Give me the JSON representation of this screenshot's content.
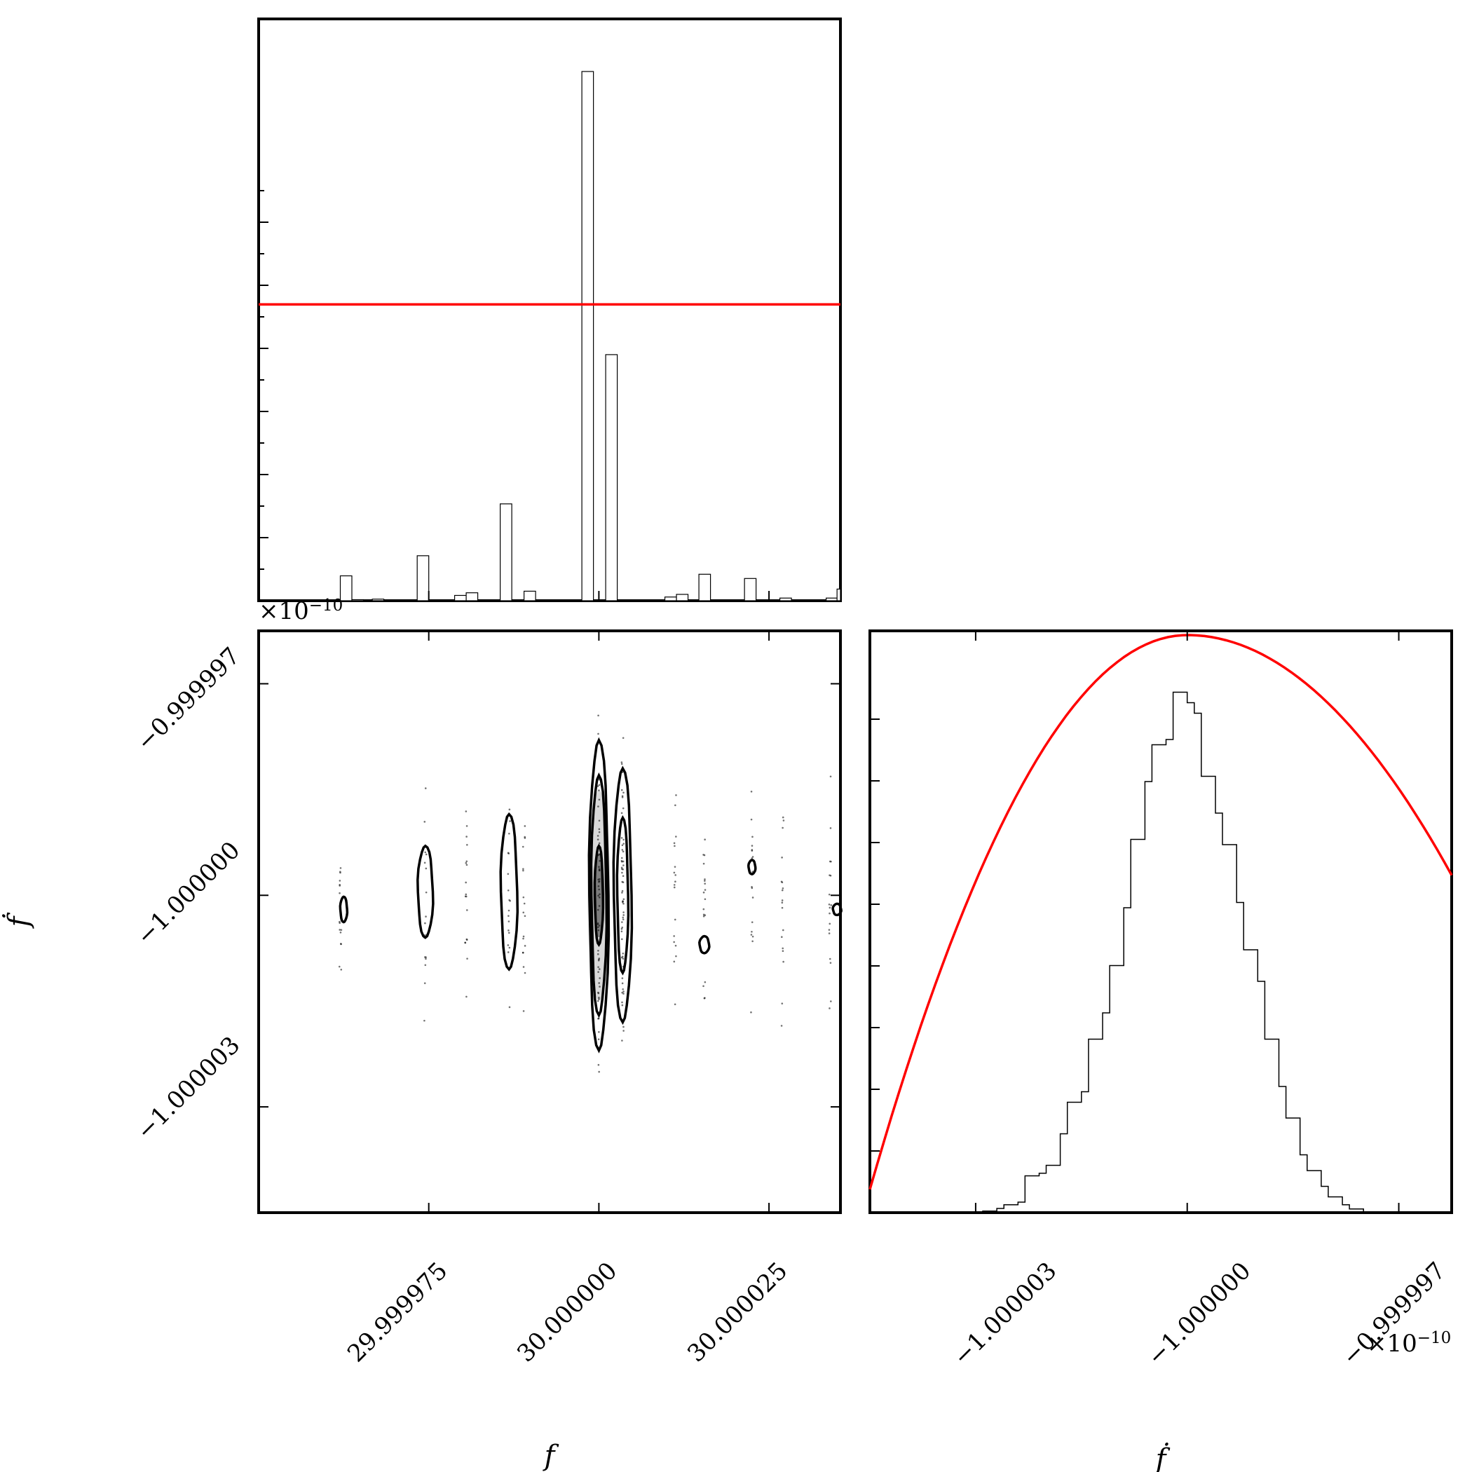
{
  "chart_data": [
    {
      "type": "bar",
      "panel": "histogram-f",
      "xlim": [
        29.99995,
        30.0000355
      ],
      "ylim": [
        0,
        1.0
      ],
      "bins": [
        {
          "x0": 29.999962,
          "x1": 29.9999637,
          "v": 0.047
        },
        {
          "x0": 29.9999637,
          "x1": 29.9999654,
          "v": 0.002
        },
        {
          "x0": 29.9999667,
          "x1": 29.9999684,
          "v": 0.003
        },
        {
          "x0": 29.9999733,
          "x1": 29.999975,
          "v": 0.085
        },
        {
          "x0": 29.9999788,
          "x1": 29.9999805,
          "v": 0.01
        },
        {
          "x0": 29.9999805,
          "x1": 29.9999822,
          "v": 0.015
        },
        {
          "x0": 29.9999855,
          "x1": 29.9999872,
          "v": 0.183
        },
        {
          "x0": 29.999989,
          "x1": 29.9999907,
          "v": 0.018
        },
        {
          "x0": 29.9999975,
          "x1": 29.9999992,
          "v": 1.0
        },
        {
          "x0": 30.000001,
          "x1": 30.0000027,
          "v": 0.465
        },
        {
          "x0": 30.0000097,
          "x1": 30.0000114,
          "v": 0.007
        },
        {
          "x0": 30.0000114,
          "x1": 30.0000131,
          "v": 0.012
        },
        {
          "x0": 30.0000147,
          "x1": 30.0000164,
          "v": 0.05
        },
        {
          "x0": 30.0000214,
          "x1": 30.0000231,
          "v": 0.042
        },
        {
          "x0": 30.0000266,
          "x1": 30.0000283,
          "v": 0.005
        },
        {
          "x0": 30.0000334,
          "x1": 30.000035,
          "v": 0.005
        },
        {
          "x0": 30.000035,
          "x1": 30.0000355,
          "v": 0.022
        }
      ],
      "reference_line_y": 0.56,
      "colors": {
        "bars": "#ffffff",
        "edge": "#000000",
        "reference": "#ff0000"
      }
    },
    {
      "type": "scatter",
      "panel": "joint-f-fdot",
      "xlim": [
        29.99995,
        30.0000355
      ],
      "ylim": [
        -1.0000045,
        -0.99999625
      ],
      "y_offset_label": "×10−10",
      "contours": [
        {
          "cx": 29.9999625,
          "cy": -1.0000002,
          "hw": 5e-07,
          "hh": 1.8e-07
        },
        {
          "cx": 29.9999745,
          "cy": -0.99999995,
          "hw": 1.1e-06,
          "hh": 6.5e-07
        },
        {
          "cx": 29.9999868,
          "cy": -0.99999995,
          "hw": 1.2e-06,
          "hh": 1.1e-06
        },
        {
          "cx": 30.0,
          "cy": -1.0,
          "hw": 1.4e-06,
          "hh": 2.2e-06
        },
        {
          "cx": 30.0,
          "cy": -1.0,
          "hw": 1.1e-06,
          "hh": 1.7e-06
        },
        {
          "cx": 30.0,
          "cy": -1.0,
          "hw": 6e-07,
          "hh": 7e-07
        },
        {
          "cx": 30.0000035,
          "cy": -1.0,
          "hw": 1.3e-06,
          "hh": 1.8e-06
        },
        {
          "cx": 30.0000035,
          "cy": -1.0,
          "hw": 8e-07,
          "hh": 1.1e-06
        },
        {
          "cx": 30.0000155,
          "cy": -1.0000007,
          "hw": 7e-07,
          "hh": 1.2e-07
        },
        {
          "cx": 30.0000225,
          "cy": -0.9999996,
          "hw": 5e-07,
          "hh": 1e-07
        },
        {
          "cx": 30.000035,
          "cy": -1.0000002,
          "hw": 6e-07,
          "hh": 8e-08
        }
      ],
      "xticks": [
        29.999975,
        30.0,
        30.000025
      ],
      "xtick_labels": [
        "29.999975",
        "30.000000",
        "30.000025"
      ],
      "yticks": [
        -0.999997,
        -1.0,
        -1.000003
      ],
      "ytick_labels": [
        "−0.999997",
        "−1.000000",
        "−1.000003"
      ],
      "xlabel": "f",
      "ylabel": "ḟ"
    },
    {
      "type": "line",
      "panel": "histogram-fdot",
      "xlim": [
        -1.0000045,
        -0.99999625
      ],
      "ylim": [
        0,
        1.0
      ],
      "x_offset_label": "×10−10",
      "steps": [
        [
          -1.0000045,
          0.0
        ],
        [
          -1.000003,
          0.0
        ],
        [
          -1.0000029,
          0.003
        ],
        [
          -1.0000027,
          0.008
        ],
        [
          -1.0000026,
          0.015
        ],
        [
          -1.0000024,
          0.02
        ],
        [
          -1.0000023,
          0.07
        ],
        [
          -1.0000021,
          0.075
        ],
        [
          -1.000002,
          0.09
        ],
        [
          -1.0000018,
          0.15
        ],
        [
          -1.0000017,
          0.21
        ],
        [
          -1.0000015,
          0.23
        ],
        [
          -1.0000014,
          0.33
        ],
        [
          -1.0000012,
          0.38
        ],
        [
          -1.0000011,
          0.47
        ],
        [
          -1.0000009,
          0.58
        ],
        [
          -1.0000008,
          0.71
        ],
        [
          -1.0000006,
          0.82
        ],
        [
          -1.0000005,
          0.89
        ],
        [
          -1.0000003,
          0.9
        ],
        [
          -1.0000002,
          0.99
        ],
        [
          -1.0,
          0.97
        ],
        [
          -0.9999999,
          0.95
        ],
        [
          -0.9999998,
          0.83
        ],
        [
          -0.9999996,
          0.76
        ],
        [
          -0.9999995,
          0.7
        ],
        [
          -0.9999993,
          0.59
        ],
        [
          -0.9999992,
          0.5
        ],
        [
          -0.999999,
          0.44
        ],
        [
          -0.9999989,
          0.33
        ],
        [
          -0.9999987,
          0.24
        ],
        [
          -0.9999986,
          0.18
        ],
        [
          -0.9999984,
          0.11
        ],
        [
          -0.9999983,
          0.08
        ],
        [
          -0.9999981,
          0.05
        ],
        [
          -0.999998,
          0.03
        ],
        [
          -0.9999978,
          0.015
        ],
        [
          -0.9999977,
          0.007
        ],
        [
          -0.9999975,
          0.0
        ],
        [
          -0.99999625,
          0.0
        ]
      ],
      "prior_peak_x": -1.0,
      "prior_curve_y_ends": [
        0.04,
        0.58
      ],
      "xticks": [
        -1.000003,
        -1.0,
        -0.999997
      ],
      "xtick_labels": [
        "−1.000003",
        "−1.000000",
        "−0.999997"
      ],
      "xlabel": "ḟ",
      "colors": {
        "line": "#000000",
        "prior": "#ff0000"
      }
    }
  ]
}
